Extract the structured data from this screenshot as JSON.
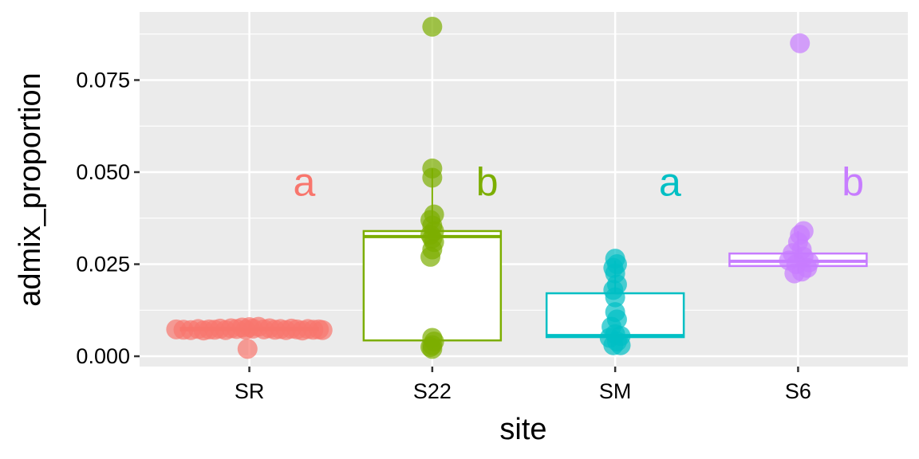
{
  "chart_data": {
    "type": "box",
    "title": "",
    "xlabel": "site",
    "ylabel": "admix_proportion",
    "ylim": [
      -0.0028,
      0.0935
    ],
    "yticks": [
      0.0,
      0.025,
      0.05,
      0.075
    ],
    "ytick_labels": [
      "0.000",
      "0.025",
      "0.050",
      "0.075"
    ],
    "yminor": [
      0.0125,
      0.0375,
      0.0625,
      0.0875
    ],
    "grid": true,
    "legend": "none",
    "categories": [
      "SR",
      "S22",
      "SM",
      "S6"
    ],
    "colors": [
      "#F8766D",
      "#7CAE00",
      "#00BFC4",
      "#C77CFF"
    ],
    "boxes": [
      {
        "q1": 0.007,
        "median": 0.0073,
        "q3": 0.0077,
        "whisker_low": 0.006,
        "whisker_high": 0.0088
      },
      {
        "q1": 0.0043,
        "median": 0.0325,
        "q3": 0.034,
        "whisker_low": 0.002,
        "whisker_high": 0.051
      },
      {
        "q1": 0.0052,
        "median": 0.0056,
        "q3": 0.0171,
        "whisker_low": 0.003,
        "whisker_high": 0.026
      },
      {
        "q1": 0.0245,
        "median": 0.0258,
        "q3": 0.0279,
        "whisker_low": 0.0225,
        "whisker_high": 0.034
      }
    ],
    "points": [
      [
        [
          -0.4,
          0.0073
        ],
        [
          -0.36,
          0.0072
        ],
        [
          -0.32,
          0.0071
        ],
        [
          -0.28,
          0.0074
        ],
        [
          -0.25,
          0.007
        ],
        [
          -0.22,
          0.0073
        ],
        [
          -0.19,
          0.0072
        ],
        [
          -0.16,
          0.0075
        ],
        [
          -0.13,
          0.0071
        ],
        [
          -0.1,
          0.0076
        ],
        [
          -0.07,
          0.0074
        ],
        [
          -0.04,
          0.0078
        ],
        [
          -0.02,
          0.0072
        ],
        [
          0.0,
          0.0079
        ],
        [
          0.02,
          0.0075
        ],
        [
          0.05,
          0.008
        ],
        [
          0.08,
          0.0073
        ],
        [
          0.11,
          0.0076
        ],
        [
          0.14,
          0.0072
        ],
        [
          0.17,
          0.0074
        ],
        [
          0.2,
          0.0071
        ],
        [
          0.23,
          0.0075
        ],
        [
          0.26,
          0.0073
        ],
        [
          0.29,
          0.007
        ],
        [
          0.32,
          0.0074
        ],
        [
          0.35,
          0.0072
        ],
        [
          0.38,
          0.0073
        ],
        [
          0.4,
          0.0071
        ],
        [
          -0.01,
          0.002
        ]
      ],
      [
        [
          0.0,
          0.0895
        ],
        [
          0.0,
          0.051
        ],
        [
          0.0,
          0.0485
        ],
        [
          0.01,
          0.0385
        ],
        [
          -0.01,
          0.037
        ],
        [
          0.0,
          0.0355
        ],
        [
          0.01,
          0.034
        ],
        [
          -0.01,
          0.033
        ],
        [
          0.0,
          0.032
        ],
        [
          0.01,
          0.031
        ],
        [
          0.0,
          0.029
        ],
        [
          -0.01,
          0.027
        ],
        [
          0.0,
          0.005
        ],
        [
          0.01,
          0.004
        ],
        [
          0.0,
          0.003
        ],
        [
          -0.01,
          0.0025
        ],
        [
          0.0,
          0.002
        ]
      ],
      [
        [
          0.0,
          0.0265
        ],
        [
          0.01,
          0.025
        ],
        [
          -0.01,
          0.024
        ],
        [
          0.0,
          0.0225
        ],
        [
          0.01,
          0.0195
        ],
        [
          -0.01,
          0.018
        ],
        [
          0.0,
          0.016
        ],
        [
          0.0,
          0.012
        ],
        [
          0.01,
          0.01
        ],
        [
          -0.02,
          0.008
        ],
        [
          0.0,
          0.006
        ],
        [
          0.03,
          0.0055
        ],
        [
          -0.03,
          0.005
        ],
        [
          0.01,
          0.004
        ],
        [
          0.03,
          0.003
        ],
        [
          -0.01,
          0.003
        ]
      ],
      [
        [
          0.01,
          0.085
        ],
        [
          0.03,
          0.034
        ],
        [
          0.01,
          0.033
        ],
        [
          0.0,
          0.031
        ],
        [
          0.02,
          0.029
        ],
        [
          -0.03,
          0.028
        ],
        [
          0.03,
          0.027
        ],
        [
          -0.05,
          0.026
        ],
        [
          0.06,
          0.0255
        ],
        [
          -0.01,
          0.025
        ],
        [
          0.05,
          0.024
        ],
        [
          0.02,
          0.023
        ],
        [
          -0.02,
          0.0225
        ]
      ]
    ],
    "annotations": [
      {
        "category": "SR",
        "x_offset": 0.3,
        "y": 0.048,
        "text": "a"
      },
      {
        "category": "S22",
        "x_offset": 0.3,
        "y": 0.048,
        "text": "b"
      },
      {
        "category": "SM",
        "x_offset": 0.3,
        "y": 0.048,
        "text": "a"
      },
      {
        "category": "S6",
        "x_offset": 0.3,
        "y": 0.048,
        "text": "b"
      }
    ]
  }
}
